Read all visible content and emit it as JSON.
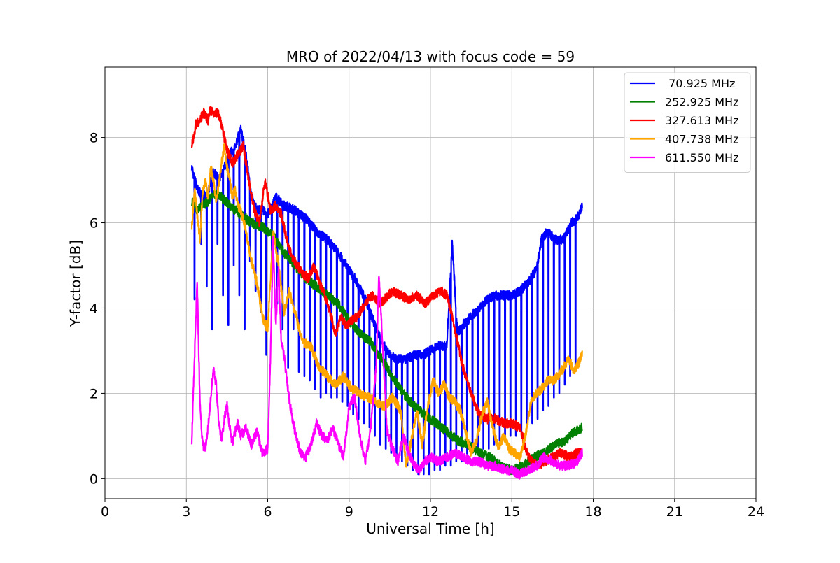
{
  "chart_data": {
    "type": "line",
    "title": "MRO of 2022/04/13 with focus code = 59",
    "xlabel": "Universal Time [h]",
    "ylabel": "Y-factor [dB]",
    "xlim": [
      0,
      24
    ],
    "ylim": [
      -0.47,
      9.65
    ],
    "xticks": [
      0,
      3,
      6,
      9,
      12,
      15,
      18,
      21,
      24
    ],
    "yticks": [
      0,
      2,
      4,
      6,
      8
    ],
    "grid": true,
    "legend_position": "top-right",
    "series": [
      {
        "name": " 70.925 MHz",
        "color": "#0000ff",
        "x": [
          3.2,
          3.4,
          3.6,
          3.8,
          4.0,
          4.2,
          4.4,
          4.6,
          4.8,
          5.0,
          5.2,
          5.4,
          5.6,
          5.8,
          6.0,
          6.3,
          6.6,
          7.0,
          7.4,
          7.8,
          8.2,
          8.6,
          9.0,
          9.3,
          9.6,
          9.9,
          10.2,
          10.5,
          10.8,
          11.1,
          11.4,
          11.7,
          12.0,
          12.3,
          12.6,
          12.8,
          13.0,
          13.2,
          13.5,
          13.8,
          14.1,
          14.4,
          14.7,
          15.0,
          15.3,
          15.6,
          15.9,
          16.1,
          16.3,
          16.6,
          16.9,
          17.2,
          17.4,
          17.6
        ],
        "y": [
          7.3,
          6.8,
          6.6,
          6.7,
          7.2,
          7.0,
          7.3,
          7.6,
          7.8,
          8.2,
          7.6,
          6.6,
          6.3,
          6.3,
          6.2,
          6.6,
          6.4,
          6.3,
          6.1,
          5.8,
          5.6,
          5.3,
          4.9,
          4.6,
          4.2,
          3.7,
          3.2,
          2.9,
          2.8,
          2.8,
          2.9,
          2.9,
          3.0,
          3.1,
          3.1,
          5.5,
          3.4,
          3.6,
          3.8,
          4.0,
          4.2,
          4.3,
          4.3,
          4.3,
          4.4,
          4.6,
          4.9,
          5.6,
          5.8,
          5.6,
          5.6,
          6.0,
          6.1,
          6.4
        ],
        "dips": [
          3.3,
          3.55,
          3.75,
          3.95,
          4.15,
          4.35,
          4.55,
          4.75,
          4.95,
          5.15,
          5.35,
          5.55,
          5.75,
          5.95,
          6.15,
          6.35,
          6.55,
          6.75,
          6.95,
          7.15,
          7.35,
          7.55,
          7.75,
          7.95,
          8.15,
          8.35,
          8.55,
          8.75,
          8.95,
          9.15,
          9.35,
          9.55,
          9.75,
          9.95,
          10.15,
          10.35,
          10.55,
          10.75,
          10.95,
          11.15,
          11.35,
          11.55,
          11.75,
          11.95,
          12.15,
          12.35,
          12.55,
          12.75,
          12.95,
          13.15,
          13.35,
          13.55,
          13.75,
          13.95,
          14.15,
          14.35,
          14.55,
          14.75,
          14.95,
          15.15,
          15.35,
          15.55,
          15.75,
          15.95,
          16.15,
          16.35,
          16.55,
          16.75,
          16.95,
          17.15,
          17.35
        ],
        "dip_min": [
          4.2,
          5.5,
          4.5,
          3.5,
          5.5,
          4.3,
          3.6,
          5.0,
          4.3,
          3.5,
          5.1,
          4.4,
          3.9,
          2.9,
          5.0,
          4.1,
          3.5,
          2.6,
          3.5,
          2.5,
          2.4,
          2.3,
          2.1,
          1.9,
          2.0,
          1.9,
          1.9,
          1.8,
          1.7,
          1.5,
          1.4,
          1.3,
          1.2,
          1.0,
          0.8,
          0.7,
          0.6,
          0.5,
          0.4,
          0.3,
          0.2,
          0.1,
          0.1,
          0.1,
          0.2,
          0.2,
          0.3,
          0.3,
          0.4,
          0.4,
          0.5,
          0.6,
          0.6,
          0.7,
          0.7,
          0.8,
          0.9,
          0.9,
          1.0,
          1.0,
          1.1,
          1.2,
          1.3,
          1.4,
          1.6,
          1.7,
          1.9,
          2.0,
          2.2,
          2.4,
          2.6
        ]
      },
      {
        "name": "252.925 MHz",
        "color": "#008000",
        "x": [
          3.2,
          3.4,
          3.6,
          3.8,
          4.0,
          4.3,
          4.6,
          5.0,
          5.4,
          5.8,
          6.2,
          6.6,
          7.0,
          7.4,
          7.8,
          8.2,
          8.6,
          9.0,
          9.4,
          9.8,
          10.2,
          10.6,
          11.0,
          11.4,
          11.8,
          12.2,
          12.6,
          13.0,
          13.4,
          13.8,
          14.2,
          14.6,
          15.0,
          15.4,
          15.8,
          16.2,
          16.6,
          17.0,
          17.3,
          17.6
        ],
        "y": [
          6.5,
          6.3,
          6.4,
          6.5,
          6.7,
          6.6,
          6.4,
          6.2,
          6.0,
          5.9,
          5.7,
          5.3,
          5.0,
          4.7,
          4.5,
          4.3,
          4.1,
          3.7,
          3.4,
          3.2,
          2.8,
          2.4,
          2.0,
          1.7,
          1.5,
          1.3,
          1.1,
          0.9,
          0.8,
          0.6,
          0.5,
          0.3,
          0.2,
          0.3,
          0.5,
          0.6,
          0.8,
          0.9,
          1.1,
          1.2
        ]
      },
      {
        "name": "327.613 MHz",
        "color": "#ff0000",
        "x": [
          3.2,
          3.35,
          3.5,
          3.65,
          3.8,
          3.9,
          4.0,
          4.15,
          4.3,
          4.5,
          4.7,
          4.9,
          5.1,
          5.3,
          5.5,
          5.7,
          5.9,
          6.1,
          6.3,
          6.5,
          6.7,
          6.9,
          7.1,
          7.3,
          7.5,
          7.7,
          7.9,
          8.1,
          8.3,
          8.5,
          8.7,
          8.9,
          9.1,
          9.3,
          9.5,
          9.7,
          9.9,
          10.1,
          10.3,
          10.6,
          10.9,
          11.2,
          11.5,
          11.8,
          12.1,
          12.4,
          12.6,
          12.8,
          13.0,
          13.2,
          13.5,
          13.8,
          14.1,
          14.4,
          14.7,
          15.0,
          15.3,
          15.6,
          15.9,
          16.2,
          16.5,
          16.8,
          17.1,
          17.4,
          17.6
        ],
        "y": [
          7.8,
          8.3,
          8.4,
          8.6,
          8.4,
          8.7,
          8.5,
          8.6,
          8.3,
          7.7,
          7.4,
          7.6,
          7.8,
          7.0,
          6.3,
          6.0,
          7.0,
          6.3,
          6.4,
          6.2,
          5.6,
          5.2,
          5.0,
          4.8,
          4.7,
          5.0,
          4.6,
          4.3,
          3.9,
          3.4,
          3.8,
          3.6,
          3.7,
          3.8,
          4.0,
          4.2,
          4.3,
          4.1,
          4.2,
          4.4,
          4.3,
          4.2,
          4.3,
          4.1,
          4.3,
          4.4,
          4.3,
          3.8,
          3.2,
          2.6,
          2.0,
          1.5,
          1.4,
          1.4,
          1.3,
          1.3,
          1.2,
          0.5,
          0.3,
          0.4,
          0.5,
          0.6,
          0.5,
          0.6,
          0.6
        ]
      },
      {
        "name": "407.738 MHz",
        "color": "#ffa500",
        "x": [
          3.2,
          3.3,
          3.4,
          3.5,
          3.6,
          3.7,
          3.8,
          3.9,
          4.0,
          4.1,
          4.2,
          4.3,
          4.4,
          4.5,
          4.6,
          4.7,
          4.8,
          4.9,
          5.0,
          5.2,
          5.4,
          5.6,
          5.8,
          6.0,
          6.2,
          6.4,
          6.6,
          6.8,
          7.0,
          7.3,
          7.6,
          7.9,
          8.2,
          8.5,
          8.8,
          9.1,
          9.4,
          9.7,
          10.0,
          10.3,
          10.6,
          10.9,
          11.1,
          11.3,
          11.5,
          11.7,
          11.9,
          12.1,
          12.3,
          12.5,
          12.7,
          12.9,
          13.1,
          13.3,
          13.5,
          13.7,
          13.9,
          14.1,
          14.3,
          14.5,
          14.7,
          14.9,
          15.1,
          15.3,
          15.5,
          15.7,
          15.9,
          16.1,
          16.3,
          16.5,
          16.7,
          16.9,
          17.1,
          17.3,
          17.6
        ],
        "y": [
          5.9,
          6.8,
          6.2,
          5.6,
          6.7,
          7.0,
          6.6,
          7.3,
          7.0,
          6.5,
          6.9,
          7.4,
          7.8,
          7.3,
          7.0,
          6.6,
          6.8,
          6.4,
          6.3,
          5.8,
          5.1,
          4.6,
          3.8,
          3.5,
          5.8,
          5.0,
          3.9,
          4.4,
          3.9,
          3.2,
          3.1,
          2.6,
          2.4,
          2.2,
          2.4,
          2.1,
          2.0,
          1.9,
          1.8,
          1.7,
          1.9,
          1.6,
          0.3,
          0.9,
          1.6,
          0.8,
          1.7,
          2.3,
          2.0,
          2.2,
          1.9,
          1.8,
          1.6,
          1.1,
          0.6,
          0.9,
          1.5,
          1.8,
          1.2,
          0.7,
          1.0,
          0.7,
          0.6,
          0.5,
          1.0,
          1.8,
          2.0,
          2.1,
          2.3,
          2.3,
          2.4,
          2.6,
          2.8,
          2.5,
          2.9
        ]
      },
      {
        "name": "611.550 MHz",
        "color": "#ff00ff",
        "x": [
          3.2,
          3.3,
          3.4,
          3.5,
          3.6,
          3.7,
          3.8,
          3.9,
          4.0,
          4.1,
          4.2,
          4.3,
          4.4,
          4.5,
          4.6,
          4.7,
          4.8,
          4.9,
          5.0,
          5.2,
          5.4,
          5.6,
          5.8,
          6.0,
          6.1,
          6.2,
          6.3,
          6.4,
          6.5,
          6.6,
          6.8,
          7.0,
          7.2,
          7.4,
          7.6,
          7.8,
          8.0,
          8.2,
          8.4,
          8.6,
          8.8,
          9.0,
          9.2,
          9.4,
          9.6,
          9.8,
          10.0,
          10.1,
          10.2,
          10.4,
          10.6,
          10.8,
          11.0,
          11.2,
          11.4,
          11.6,
          11.8,
          12.0,
          12.3,
          12.6,
          12.9,
          13.2,
          13.5,
          13.8,
          14.1,
          14.4,
          14.7,
          15.0,
          15.3,
          15.6,
          15.9,
          16.2,
          16.5,
          16.8,
          17.1,
          17.4,
          17.6
        ],
        "y": [
          0.9,
          2.8,
          4.6,
          1.8,
          0.8,
          0.7,
          1.2,
          1.9,
          2.6,
          2.2,
          1.3,
          0.9,
          1.4,
          1.7,
          1.2,
          0.8,
          1.1,
          1.3,
          1.0,
          1.2,
          0.8,
          1.1,
          0.6,
          0.7,
          2.8,
          5.6,
          3.6,
          4.9,
          3.2,
          2.9,
          1.8,
          1.1,
          0.6,
          0.5,
          0.8,
          1.3,
          1.0,
          0.9,
          1.2,
          0.8,
          0.5,
          1.7,
          1.9,
          1.0,
          0.4,
          1.2,
          2.6,
          4.8,
          3.6,
          1.1,
          0.7,
          0.4,
          1.0,
          0.6,
          0.3,
          0.2,
          0.4,
          0.5,
          0.4,
          0.5,
          0.6,
          0.5,
          0.4,
          0.4,
          0.3,
          0.3,
          0.2,
          0.2,
          0.1,
          0.2,
          0.3,
          0.5,
          0.4,
          0.3,
          0.3,
          0.4,
          0.6
        ]
      }
    ]
  }
}
